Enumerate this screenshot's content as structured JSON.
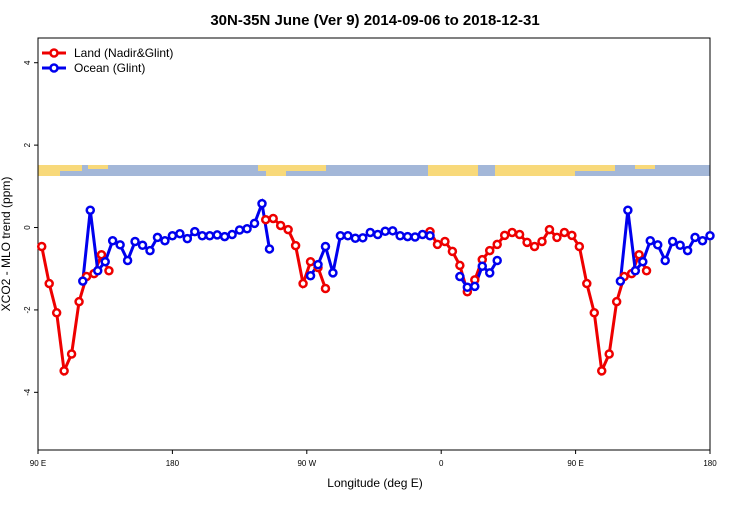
{
  "chart_data": {
    "type": "line",
    "title": "30N-35N June (Ver 9)   2014-09-06 to 2018-12-31",
    "xlabel": "Longitude (deg E)",
    "ylabel": "XCO2 - MLO trend (ppm)",
    "xlim": [
      90,
      540
    ],
    "ylim": [
      -5.4,
      4.6
    ],
    "xticks": [
      {
        "value": 90,
        "label": "90 E"
      },
      {
        "value": 180,
        "label": "180"
      },
      {
        "value": 270,
        "label": "90 W"
      },
      {
        "value": 360,
        "label": "0"
      },
      {
        "value": 450,
        "label": "90 E"
      },
      {
        "value": 540,
        "label": "180"
      }
    ],
    "yticks": [
      -4,
      -2,
      0,
      2,
      4
    ],
    "legend": "top-left",
    "series": [
      {
        "name": "Land (Nadir&Glint)",
        "color": "#ee0000",
        "x": [
          92.5,
          97.5,
          102.5,
          107.5,
          112.5,
          117.5,
          122.5,
          127.5,
          132.5,
          137.5,
          190,
          242.5,
          247.5,
          252.5,
          257.5,
          262.5,
          267.5,
          272.5,
          277.5,
          282.5,
          317.5,
          352.5,
          357.5,
          362.5,
          367.5,
          372.5,
          377.5,
          382.5,
          387.5,
          392.5,
          397.5,
          402.5,
          407.5,
          412.5,
          417.5,
          422.5,
          427.5,
          432.5,
          437.5,
          442.5,
          447.5,
          452.5,
          457.5,
          462.5,
          467.5,
          472.5,
          477.5,
          482.5,
          487.5,
          492.5,
          497.5
        ],
        "values": [
          -0.46,
          -1.36,
          -2.07,
          -3.48,
          -3.07,
          -1.8,
          -1.19,
          -1.12,
          -0.66,
          -1.05,
          null,
          0.19,
          0.22,
          0.05,
          -0.05,
          -0.44,
          -1.36,
          -0.83,
          -0.97,
          -1.48,
          null,
          -0.1,
          -0.41,
          -0.34,
          -0.58,
          -0.92,
          -1.56,
          -1.27,
          -0.78,
          -0.56,
          -0.41,
          -0.19,
          -0.12,
          -0.17,
          -0.36,
          -0.46,
          -0.34,
          -0.05,
          -0.24,
          -0.12,
          -0.19,
          -0.46,
          -1.36,
          -2.07,
          -3.48,
          -3.07,
          -1.8,
          -1.19,
          -1.12,
          -0.66,
          -1.05
        ]
      },
      {
        "name": "Ocean (Glint)",
        "color": "#0000ee",
        "x": [
          120,
          125,
          130,
          135,
          140,
          145,
          150,
          155,
          160,
          165,
          170,
          175,
          180,
          185,
          190,
          195,
          200,
          205,
          210,
          215,
          220,
          225,
          230,
          235,
          240,
          245,
          250,
          272.5,
          277.5,
          282.5,
          287.5,
          292.5,
          297.5,
          302.5,
          307.5,
          312.5,
          317.5,
          322.5,
          327.5,
          332.5,
          337.5,
          342.5,
          347.5,
          352.5,
          362.5,
          372.5,
          377.5,
          382.5,
          387.5,
          392.5,
          397.5,
          437.5,
          480,
          485,
          490,
          495,
          500,
          505,
          510,
          515,
          520,
          525,
          530,
          535,
          540
        ],
        "values": [
          -1.3,
          0.42,
          -1.05,
          -0.83,
          -0.32,
          -0.42,
          -0.8,
          -0.34,
          -0.43,
          -0.56,
          -0.24,
          -0.32,
          -0.2,
          -0.15,
          -0.27,
          -0.1,
          -0.2,
          -0.2,
          -0.18,
          -0.22,
          -0.17,
          -0.06,
          -0.03,
          0.1,
          0.58,
          -0.52,
          null,
          -1.17,
          -0.9,
          -0.46,
          -1.1,
          -0.2,
          -0.2,
          -0.26,
          -0.25,
          -0.12,
          -0.17,
          -0.09,
          -0.08,
          -0.2,
          -0.22,
          -0.23,
          -0.17,
          -0.2,
          null,
          -1.19,
          -1.45,
          -1.43,
          -0.94,
          -1.1,
          -0.8,
          null,
          -1.3,
          0.42,
          -1.05,
          -0.83,
          -0.32,
          -0.42,
          -0.8,
          -0.34,
          -0.43,
          -0.56,
          -0.24,
          -0.32,
          -0.2
        ]
      }
    ]
  }
}
